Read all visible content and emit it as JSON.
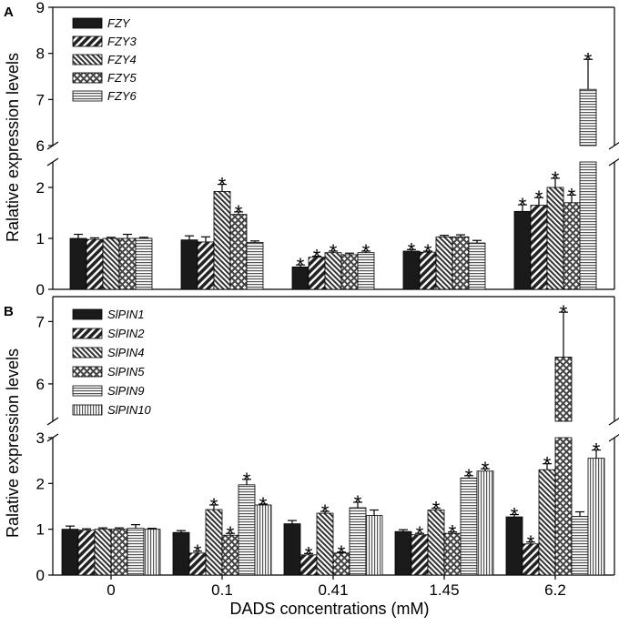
{
  "figure": {
    "xlabel": "DADS concentrations (mM)",
    "categories": [
      "0",
      "0.1",
      "0.41",
      "1.45",
      "6.2"
    ]
  },
  "chart_data": [
    {
      "type": "bar",
      "panel": "A",
      "ylabel": "Ralative expression levels",
      "lower_ylim": [
        0,
        2.5
      ],
      "upper_ylim": [
        6,
        9
      ],
      "lower_ticks": [
        "0",
        "1",
        "2"
      ],
      "upper_ticks": [
        "6",
        "7",
        "8",
        "9"
      ],
      "categories": [
        "0",
        "0.1",
        "0.41",
        "1.45",
        "6.2"
      ],
      "series": [
        {
          "name": "FZY",
          "pattern": "solid",
          "values": [
            1.0,
            0.97,
            0.44,
            0.75,
            1.53
          ],
          "errors": [
            0.08,
            0.08,
            0.04,
            0.03,
            0.13
          ],
          "sig": [
            false,
            false,
            true,
            true,
            true
          ]
        },
        {
          "name": "FZY3",
          "pattern": "diag",
          "values": [
            0.98,
            0.93,
            0.63,
            0.73,
            1.65
          ],
          "errors": [
            0.03,
            0.1,
            0.02,
            0.02,
            0.15
          ],
          "sig": [
            false,
            false,
            true,
            true,
            true
          ]
        },
        {
          "name": "FZY4",
          "pattern": "diagdense",
          "values": [
            1.0,
            1.92,
            0.72,
            1.03,
            2.0
          ],
          "errors": [
            0.02,
            0.14,
            0.03,
            0.03,
            0.18
          ],
          "sig": [
            false,
            true,
            true,
            false,
            true
          ]
        },
        {
          "name": "FZY5",
          "pattern": "cross",
          "values": [
            1.0,
            1.47,
            0.68,
            1.03,
            1.7
          ],
          "errors": [
            0.08,
            0.05,
            0.03,
            0.04,
            0.15
          ],
          "sig": [
            false,
            true,
            false,
            false,
            true
          ]
        },
        {
          "name": "FZY6",
          "pattern": "hlines",
          "values": [
            1.0,
            0.92,
            0.72,
            0.91,
            7.22
          ],
          "errors": [
            0.02,
            0.03,
            0.03,
            0.05,
            0.65
          ],
          "sig": [
            false,
            false,
            true,
            false,
            true
          ]
        }
      ]
    },
    {
      "type": "bar",
      "panel": "B",
      "ylabel": "Ralative expression levels",
      "lower_ylim": [
        0,
        3
      ],
      "upper_ylim": [
        5.4,
        7.4
      ],
      "lower_ticks": [
        "0",
        "1",
        "2",
        "3"
      ],
      "upper_ticks": [
        "6",
        "7"
      ],
      "categories": [
        "0",
        "0.1",
        "0.41",
        "1.45",
        "6.2"
      ],
      "series": [
        {
          "name": "SlPIN1",
          "pattern": "solid",
          "values": [
            1.0,
            0.93,
            1.12,
            0.95,
            1.27
          ],
          "errors": [
            0.07,
            0.04,
            0.07,
            0.04,
            0.05
          ],
          "sig": [
            false,
            false,
            false,
            false,
            true
          ]
        },
        {
          "name": "SlPIN2",
          "pattern": "diag",
          "values": [
            0.98,
            0.48,
            0.44,
            0.88,
            0.68
          ],
          "errors": [
            0.03,
            0.04,
            0.03,
            0.03,
            0.04
          ],
          "sig": [
            false,
            true,
            true,
            true,
            true
          ]
        },
        {
          "name": "SlPIN4",
          "pattern": "diagdense",
          "values": [
            1.0,
            1.43,
            1.35,
            1.42,
            2.3
          ],
          "errors": [
            0.03,
            0.1,
            0.04,
            0.04,
            0.13
          ],
          "sig": [
            false,
            true,
            true,
            true,
            true
          ]
        },
        {
          "name": "SlPIN5",
          "pattern": "cross",
          "values": [
            1.0,
            0.87,
            0.48,
            0.91,
            6.43
          ],
          "errors": [
            0.03,
            0.04,
            0.02,
            0.03,
            0.72
          ],
          "sig": [
            false,
            true,
            true,
            true,
            true
          ]
        },
        {
          "name": "SlPIN9",
          "pattern": "hlines",
          "values": [
            1.02,
            1.97,
            1.47,
            2.12,
            1.28
          ],
          "errors": [
            0.08,
            0.12,
            0.12,
            0.05,
            0.1
          ],
          "sig": [
            false,
            true,
            true,
            true,
            false
          ]
        },
        {
          "name": "SlPIN10",
          "pattern": "vlines",
          "values": [
            1.0,
            1.53,
            1.3,
            2.27,
            2.55
          ],
          "errors": [
            0.02,
            0.02,
            0.12,
            0.05,
            0.18
          ],
          "sig": [
            false,
            true,
            false,
            true,
            true
          ]
        }
      ]
    }
  ]
}
